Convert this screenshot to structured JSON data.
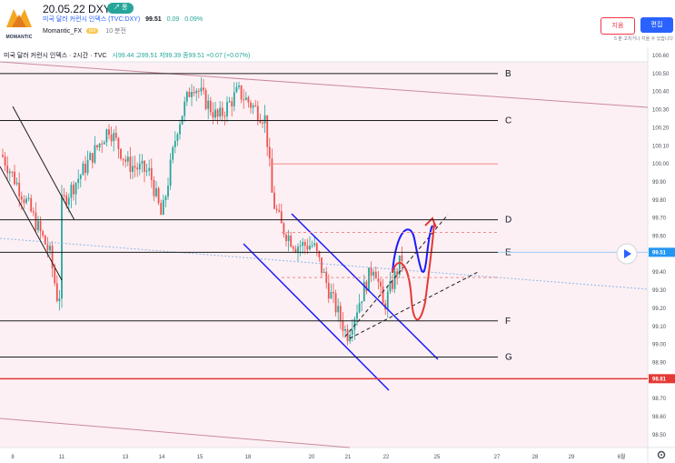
{
  "header": {
    "logo_text": "MOMANTIC",
    "idea_title": "20.05.22 DXY",
    "trend_badge": "↗ 롱",
    "symbol_name": "미국 달러 커런시 인덱스 (TVC:DXY)",
    "price": "99.51",
    "change": "0.09",
    "change_pct": "0.09%",
    "author": "Momantic_FX",
    "author_badge": "pro",
    "time_ago": "10 분전",
    "delete_label": "지움",
    "edit_label": "편집",
    "edit_hint": "5 분 고치거나 지울 수 있습니다"
  },
  "legend": {
    "title": "미국 달러 커런시 인덱스 · 2시간 · TVC",
    "ohlc": "시99.44  고99.51  저99.39  종99.51  +0.07 (+0.07%)"
  },
  "price_axis": {
    "ticks": [
      "100.60",
      "100.50",
      "100.40",
      "100.30",
      "100.20",
      "100.10",
      "100.00",
      "99.90",
      "99.80",
      "99.70",
      "99.60",
      "99.40",
      "99.30",
      "99.20",
      "99.10",
      "99.00",
      "98.90",
      "98.70",
      "98.60",
      "98.50"
    ],
    "current_tag": "99.51",
    "support_tag": "98.81",
    "current_color": "#2196f3",
    "support_color": "#e53935"
  },
  "time_axis": [
    "8",
    "11",
    "13",
    "14",
    "15",
    "18",
    "20",
    "21",
    "22",
    "25",
    "27",
    "28",
    "29",
    "6월"
  ],
  "levels": [
    {
      "label": "B",
      "price": 100.5
    },
    {
      "label": "C",
      "price": 100.24
    },
    {
      "label": "D",
      "price": 99.69
    },
    {
      "label": "E",
      "price": 99.51
    },
    {
      "label": "F",
      "price": 99.13
    },
    {
      "label": "G",
      "price": 98.93
    }
  ],
  "support_line": 98.81,
  "colors": {
    "up": "#26a69a",
    "down": "#ef5350",
    "channel": "#1a1aff",
    "projection": "#e53935"
  },
  "bottom_icon": "gear-icon",
  "play_icon": "play-icon"
}
